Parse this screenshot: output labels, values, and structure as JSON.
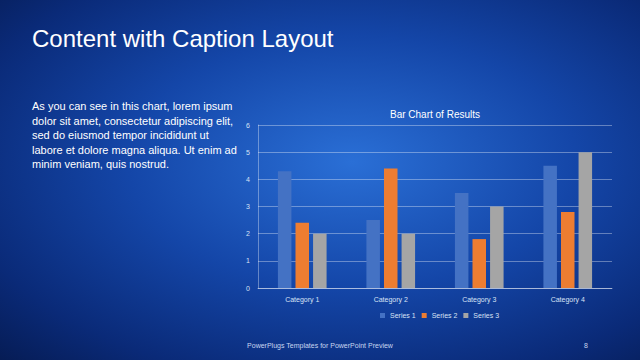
{
  "slide": {
    "title": "Content with Caption Layout",
    "caption": "As you can see in this chart, lorem ipsum dolor sit amet, consectetur adipiscing elit, sed do eiusmod tempor incididunt ut labore et dolore magna aliqua. Ut enim ad minim veniam, quis nostrud.",
    "footer": "PowerPlugs Templates for PowerPoint Preview",
    "page": 8
  },
  "chart_data": {
    "type": "bar",
    "title": "Bar Chart of Results",
    "categories": [
      "Category 1",
      "Category 2",
      "Category 3",
      "Category 4"
    ],
    "series": [
      {
        "name": "Series 1",
        "color": "#4472c4",
        "values": [
          4.3,
          2.5,
          3.5,
          4.5
        ]
      },
      {
        "name": "Series 2",
        "color": "#ed7d31",
        "values": [
          2.4,
          4.4,
          1.8,
          2.8
        ]
      },
      {
        "name": "Series 3",
        "color": "#a5a5a5",
        "values": [
          2.0,
          2.0,
          3.0,
          5.0
        ]
      }
    ],
    "ylim": [
      0,
      6
    ],
    "yticks": [
      0,
      1,
      2,
      3,
      4,
      5,
      6
    ],
    "grid": true,
    "legend": "bottom"
  }
}
